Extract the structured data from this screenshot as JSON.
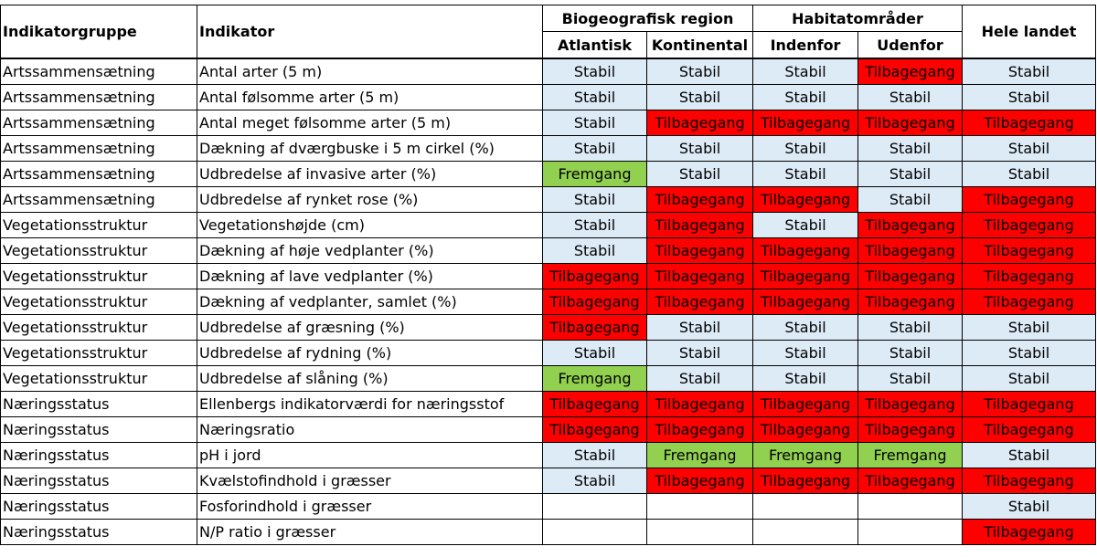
{
  "colors": {
    "Stabil": "#ddebf7",
    "Tilbagegang": "#ff0000",
    "Fremgang": "#92d050",
    "empty": "#ffffff"
  },
  "header": {
    "group": "Indikatorgruppe",
    "indicator": "Indikator",
    "bio_region": "Biogeografisk region",
    "habitat": "Habitatområder",
    "whole": "Hele landet",
    "atlantic": "Atlantisk",
    "continental": "Kontinental",
    "inside": "Indenfor",
    "outside": "Udenfor"
  },
  "rows": [
    {
      "group": "Artssammensætning",
      "indicator": "Antal arter (5 m)",
      "values": [
        "Stabil",
        "Stabil",
        "Stabil",
        "Tilbagegang",
        "Stabil"
      ]
    },
    {
      "group": "Artssammensætning",
      "indicator": "Antal følsomme arter (5 m)",
      "values": [
        "Stabil",
        "Stabil",
        "Stabil",
        "Stabil",
        "Stabil"
      ]
    },
    {
      "group": "Artssammensætning",
      "indicator": "Antal meget følsomme arter (5 m)",
      "values": [
        "Stabil",
        "Tilbagegang",
        "Tilbagegang",
        "Tilbagegang",
        "Tilbagegang"
      ]
    },
    {
      "group": "Artssammensætning",
      "indicator": "Dækning af dværgbuske i 5 m cirkel (%)",
      "values": [
        "Stabil",
        "Stabil",
        "Stabil",
        "Stabil",
        "Stabil"
      ]
    },
    {
      "group": "Artssammensætning",
      "indicator": "Udbredelse af invasive arter (%)",
      "values": [
        "Fremgang",
        "Stabil",
        "Stabil",
        "Stabil",
        "Stabil"
      ]
    },
    {
      "group": "Artssammensætning",
      "indicator": "Udbredelse af rynket rose (%)",
      "values": [
        "Stabil",
        "Tilbagegang",
        "Tilbagegang",
        "Stabil",
        "Tilbagegang"
      ]
    },
    {
      "group": "Vegetationsstruktur",
      "indicator": "Vegetationshøjde (cm)",
      "values": [
        "Stabil",
        "Tilbagegang",
        "Stabil",
        "Tilbagegang",
        "Tilbagegang"
      ]
    },
    {
      "group": "Vegetationsstruktur",
      "indicator": "Dækning af høje vedplanter (%)",
      "values": [
        "Stabil",
        "Tilbagegang",
        "Tilbagegang",
        "Tilbagegang",
        "Tilbagegang"
      ]
    },
    {
      "group": "Vegetationsstruktur",
      "indicator": "Dækning af lave vedplanter (%)",
      "values": [
        "Tilbagegang",
        "Tilbagegang",
        "Tilbagegang",
        "Tilbagegang",
        "Tilbagegang"
      ]
    },
    {
      "group": "Vegetationsstruktur",
      "indicator": "Dækning af vedplanter, samlet (%)",
      "values": [
        "Tilbagegang",
        "Tilbagegang",
        "Tilbagegang",
        "Tilbagegang",
        "Tilbagegang"
      ]
    },
    {
      "group": "Vegetationsstruktur",
      "indicator": "Udbredelse af græsning (%)",
      "values": [
        "Tilbagegang",
        "Stabil",
        "Stabil",
        "Stabil",
        "Stabil"
      ]
    },
    {
      "group": "Vegetationsstruktur",
      "indicator": "Udbredelse af rydning (%)",
      "values": [
        "Stabil",
        "Stabil",
        "Stabil",
        "Stabil",
        "Stabil"
      ]
    },
    {
      "group": "Vegetationsstruktur",
      "indicator": "Udbredelse af slåning (%)",
      "values": [
        "Fremgang",
        "Stabil",
        "Stabil",
        "Stabil",
        "Stabil"
      ]
    },
    {
      "group": "Næringsstatus",
      "indicator": "Ellenbergs indikatorværdi for næringsstof",
      "values": [
        "Tilbagegang",
        "Tilbagegang",
        "Tilbagegang",
        "Tilbagegang",
        "Tilbagegang"
      ]
    },
    {
      "group": "Næringsstatus",
      "indicator": "Næringsratio",
      "values": [
        "Tilbagegang",
        "Tilbagegang",
        "Tilbagegang",
        "Tilbagegang",
        "Tilbagegang"
      ]
    },
    {
      "group": "Næringsstatus",
      "indicator": "pH i jord",
      "values": [
        "Stabil",
        "Fremgang",
        "Fremgang",
        "Fremgang",
        "Stabil"
      ]
    },
    {
      "group": "Næringsstatus",
      "indicator": "Kvælstofindhold i græsser",
      "values": [
        "Stabil",
        "Tilbagegang",
        "Tilbagegang",
        "Tilbagegang",
        "Tilbagegang"
      ]
    },
    {
      "group": "Næringsstatus",
      "indicator": "Fosforindhold i græsser",
      "values": [
        "",
        "",
        "",
        "",
        "Stabil"
      ]
    },
    {
      "group": "Næringsstatus",
      "indicator": "N/P ratio i græsser",
      "values": [
        "",
        "",
        "",
        "",
        "Tilbagegang"
      ]
    }
  ]
}
